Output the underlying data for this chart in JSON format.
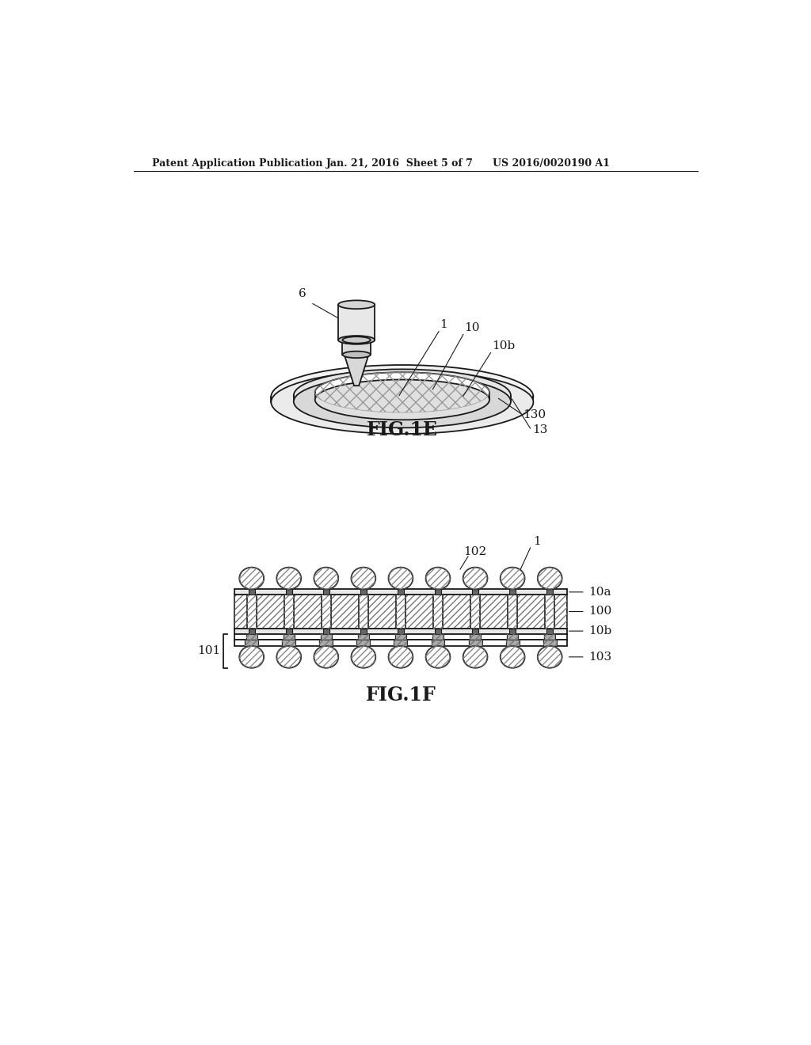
{
  "bg_color": "#ffffff",
  "header_left": "Patent Application Publication",
  "header_mid": "Jan. 21, 2016  Sheet 5 of 7",
  "header_right": "US 2016/0020190 A1",
  "fig1e_label": "FIG.1E",
  "fig1f_label": "FIG.1F",
  "line_color": "#1a1a1a"
}
